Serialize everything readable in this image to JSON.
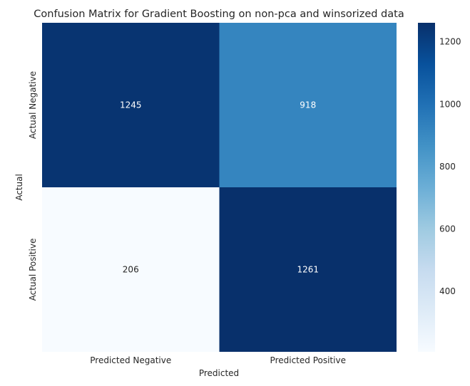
{
  "chart_data": {
    "type": "heatmap",
    "title": "Confusion Matrix for Gradient Boosting on non-pca and winsorized data",
    "xlabel": "Predicted",
    "ylabel": "Actual",
    "x_categories": [
      "Predicted Negative",
      "Predicted Positive"
    ],
    "y_categories": [
      "Actual Negative",
      "Actual Positive"
    ],
    "values": [
      [
        1245,
        918
      ],
      [
        206,
        1261
      ]
    ],
    "colormap": "Blues",
    "colorbar": {
      "range": [
        206,
        1261
      ],
      "ticks": [
        "400",
        "600",
        "800",
        "1000",
        "1200"
      ]
    },
    "colors": {
      "low": "#f7fbff",
      "high": "#08306b",
      "annotation_light": "#ffffff",
      "annotation_dark": "#262626"
    }
  }
}
